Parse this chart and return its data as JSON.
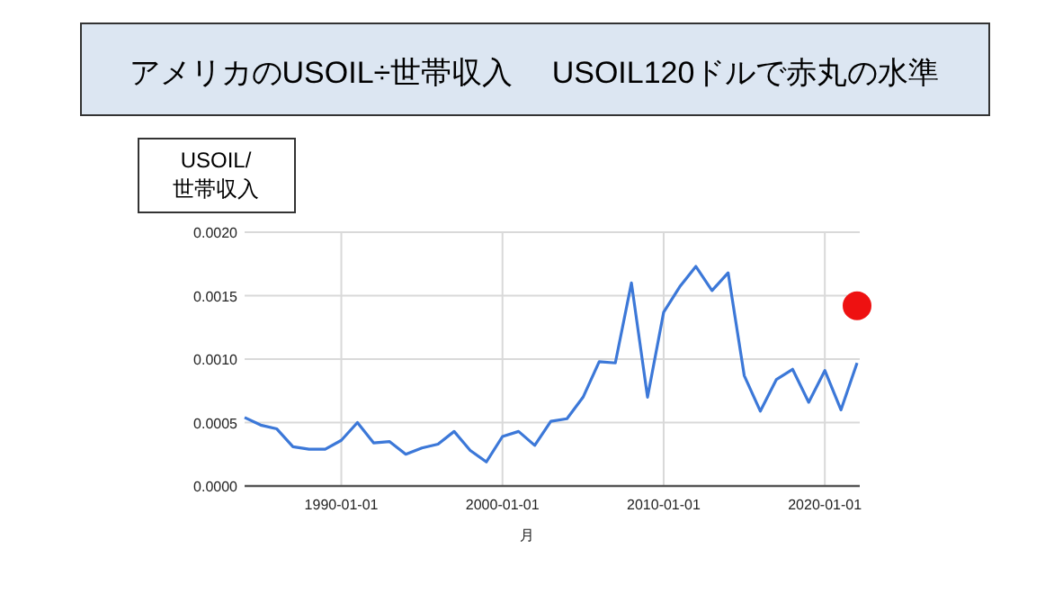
{
  "chart_data": {
    "type": "line",
    "title": "アメリカのUSOIL÷世帯収入　 USOIL120ドルで赤丸の水準",
    "ylabel": "USOIL/\n世帯収入",
    "xlabel": "月",
    "x": [
      "1984",
      "1985",
      "1986",
      "1987",
      "1988",
      "1989",
      "1990",
      "1991",
      "1992",
      "1993",
      "1994",
      "1995",
      "1996",
      "1997",
      "1998",
      "1999",
      "2000",
      "2001",
      "2002",
      "2003",
      "2004",
      "2005",
      "2006",
      "2007",
      "2008",
      "2009",
      "2010",
      "2011",
      "2012",
      "2013",
      "2014",
      "2015",
      "2016",
      "2017",
      "2018",
      "2019",
      "2020",
      "2021",
      "2022"
    ],
    "series": [
      {
        "color": "#3c78d8",
        "values": [
          0.00054,
          0.00048,
          0.00045,
          0.00031,
          0.00029,
          0.00029,
          0.00036,
          0.0005,
          0.00034,
          0.00035,
          0.00025,
          0.0003,
          0.00033,
          0.00043,
          0.00028,
          0.00019,
          0.00039,
          0.00043,
          0.00032,
          0.00051,
          0.00053,
          0.0007,
          0.00098,
          0.00097,
          0.0016,
          0.0007,
          0.00137,
          0.00157,
          0.00173,
          0.00154,
          0.00168,
          0.00087,
          0.00059,
          0.00084,
          0.00092,
          0.00066,
          0.00091,
          0.0006,
          0.00097
        ]
      },
      {
        "type": "scatter",
        "color": "#ee1111",
        "marker": "circle",
        "x": [
          "2022"
        ],
        "values": [
          0.00142
        ]
      }
    ],
    "xlim": [
      "1984",
      "2022-03"
    ],
    "xticks": [
      "1990-01-01",
      "2000-01-01",
      "2010-01-01",
      "2020-01-01"
    ],
    "ylim": [
      0,
      0.002
    ],
    "yticks": [
      {
        "value": 0,
        "label": "0.0000"
      },
      {
        "value": 0.0005,
        "label": "0.0005"
      },
      {
        "value": 0.001,
        "label": "0.0010"
      },
      {
        "value": 0.0015,
        "label": "0.0015"
      },
      {
        "value": 0.002,
        "label": "0.0020"
      }
    ],
    "grid": true
  }
}
